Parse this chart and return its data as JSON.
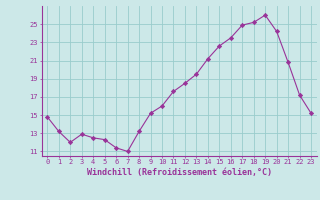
{
  "x": [
    0,
    1,
    2,
    3,
    4,
    5,
    6,
    7,
    8,
    9,
    10,
    11,
    12,
    13,
    14,
    15,
    16,
    17,
    18,
    19,
    20,
    21,
    22,
    23
  ],
  "y": [
    14.8,
    13.2,
    12.0,
    12.9,
    12.5,
    12.3,
    11.4,
    11.0,
    13.2,
    15.2,
    16.0,
    17.6,
    18.5,
    19.5,
    21.2,
    22.6,
    23.5,
    24.9,
    25.2,
    26.0,
    24.2,
    20.8,
    17.2,
    15.2
  ],
  "line_color": "#993399",
  "marker": "D",
  "marker_size": 2.2,
  "bg_color": "#cce8e8",
  "grid_color": "#99cccc",
  "xlabel": "Windchill (Refroidissement éolien,°C)",
  "xlabel_color": "#993399",
  "tick_color": "#993399",
  "ylim": [
    10.5,
    27.0
  ],
  "xlim": [
    -0.5,
    23.5
  ],
  "yticks": [
    11,
    13,
    15,
    17,
    19,
    21,
    23,
    25
  ],
  "xticks": [
    0,
    1,
    2,
    3,
    4,
    5,
    6,
    7,
    8,
    9,
    10,
    11,
    12,
    13,
    14,
    15,
    16,
    17,
    18,
    19,
    20,
    21,
    22,
    23
  ],
  "tick_fontsize": 5.0,
  "xlabel_fontsize": 6.0,
  "linewidth": 0.8
}
